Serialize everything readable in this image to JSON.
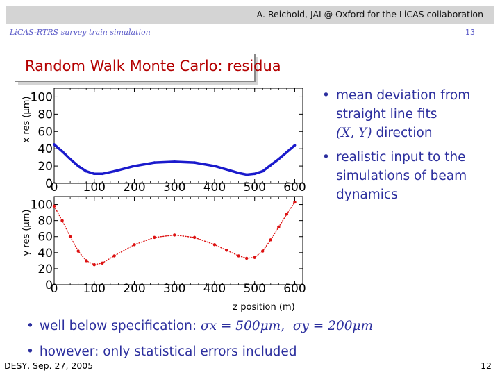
{
  "header": {
    "author": "A. Reichold, JAI @ Oxford for the LiCAS collaboration",
    "subtitle": "LiCAS-RTRS survey train simulation",
    "page_small": "13"
  },
  "slide": {
    "title": "Random Walk Monte Carlo: residua"
  },
  "bullets": [
    {
      "lines": [
        "mean deviation from",
        "straight line fits"
      ],
      "math": "(X, Y)",
      "after": " direction"
    },
    {
      "lines": [
        "realistic input to the",
        "simulations of beam",
        "dynamics"
      ]
    }
  ],
  "bottom": {
    "b1_text": "well below specification: ",
    "b1_math1": "σx = 500μm,",
    "b1_math2": "σy = 200μm",
    "b2_text": "however: only statistical errors included"
  },
  "footer": {
    "left": "DESY, Sep. 27, 2005",
    "right": "12"
  },
  "colors": {
    "x_series": "#1a1acc",
    "y_series": "#dd1111",
    "title": "#b40000",
    "bullet_text": "#2c2f9e"
  },
  "chart_data": [
    {
      "type": "line",
      "ylabel": "x res (μm)",
      "xlabel": "",
      "xlim": [
        0,
        620
      ],
      "ylim": [
        0,
        110
      ],
      "xticks": [
        0,
        100,
        200,
        300,
        400,
        500,
        600
      ],
      "yticks": [
        0,
        20,
        40,
        60,
        80,
        100
      ],
      "series": [
        {
          "x": [
            0,
            20,
            40,
            60,
            80,
            100,
            120,
            150,
            200,
            250,
            300,
            350,
            400,
            430,
            460,
            480,
            500,
            520,
            540,
            560,
            580,
            600
          ],
          "y": [
            45,
            37,
            28,
            20,
            14,
            11,
            11,
            14,
            20,
            24,
            25,
            24,
            20,
            16,
            12,
            10,
            11,
            14,
            21,
            28,
            36,
            44
          ]
        }
      ]
    },
    {
      "type": "scatter",
      "ylabel": "y res (μm)",
      "xlabel": "z position (m)",
      "xlim": [
        0,
        620
      ],
      "ylim": [
        0,
        110
      ],
      "xticks": [
        0,
        100,
        200,
        300,
        400,
        500,
        600
      ],
      "yticks": [
        0,
        20,
        40,
        60,
        80,
        100
      ],
      "series": [
        {
          "x": [
            0,
            20,
            40,
            60,
            80,
            100,
            120,
            150,
            200,
            250,
            300,
            350,
            400,
            430,
            460,
            480,
            500,
            520,
            540,
            560,
            580,
            600
          ],
          "y": [
            98,
            80,
            60,
            42,
            30,
            25,
            27,
            36,
            50,
            59,
            62,
            59,
            50,
            43,
            36,
            33,
            34,
            42,
            56,
            72,
            88,
            103
          ]
        }
      ]
    }
  ]
}
